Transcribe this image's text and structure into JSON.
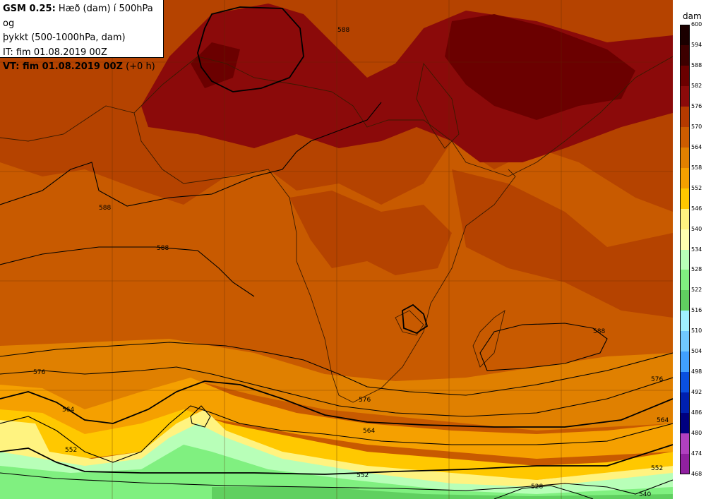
{
  "title": {
    "model": "GSM 0.25:",
    "line1_rest": " Hæð (dam) í 500hPa og",
    "line2": "þykkt (500-1000hPa, dam)",
    "line3": "IT: fim 01.08.2019 00Z",
    "line4_bold": "VT: fim 01.08.2019 00Z",
    "line4_rest": " (+0 h)"
  },
  "legend": {
    "unit": "dam",
    "ticks": [
      "600",
      "594",
      "588",
      "582",
      "576",
      "570",
      "564",
      "558",
      "552",
      "546",
      "540",
      "534",
      "528",
      "522",
      "516",
      "510",
      "504",
      "498",
      "492",
      "486",
      "480",
      "474",
      "468"
    ],
    "colors": [
      "#1b0000",
      "#3d0000",
      "#6b0000",
      "#8b0a0a",
      "#b53a00",
      "#cc5c00",
      "#e08000",
      "#f5a000",
      "#ffc800",
      "#fff380",
      "#ffffb0",
      "#b8ffb8",
      "#80f080",
      "#60d060",
      "#a0f0ff",
      "#70c8ff",
      "#40a0ff",
      "#0a50e0",
      "#0020b0",
      "#000080",
      "#b040c0",
      "#9020a0",
      "#701090",
      "#500070"
    ]
  },
  "contours": {
    "labels": [
      "588",
      "588",
      "588",
      "588",
      "576",
      "576",
      "576",
      "564",
      "564",
      "564",
      "552",
      "552",
      "552",
      "540",
      "528"
    ]
  }
}
